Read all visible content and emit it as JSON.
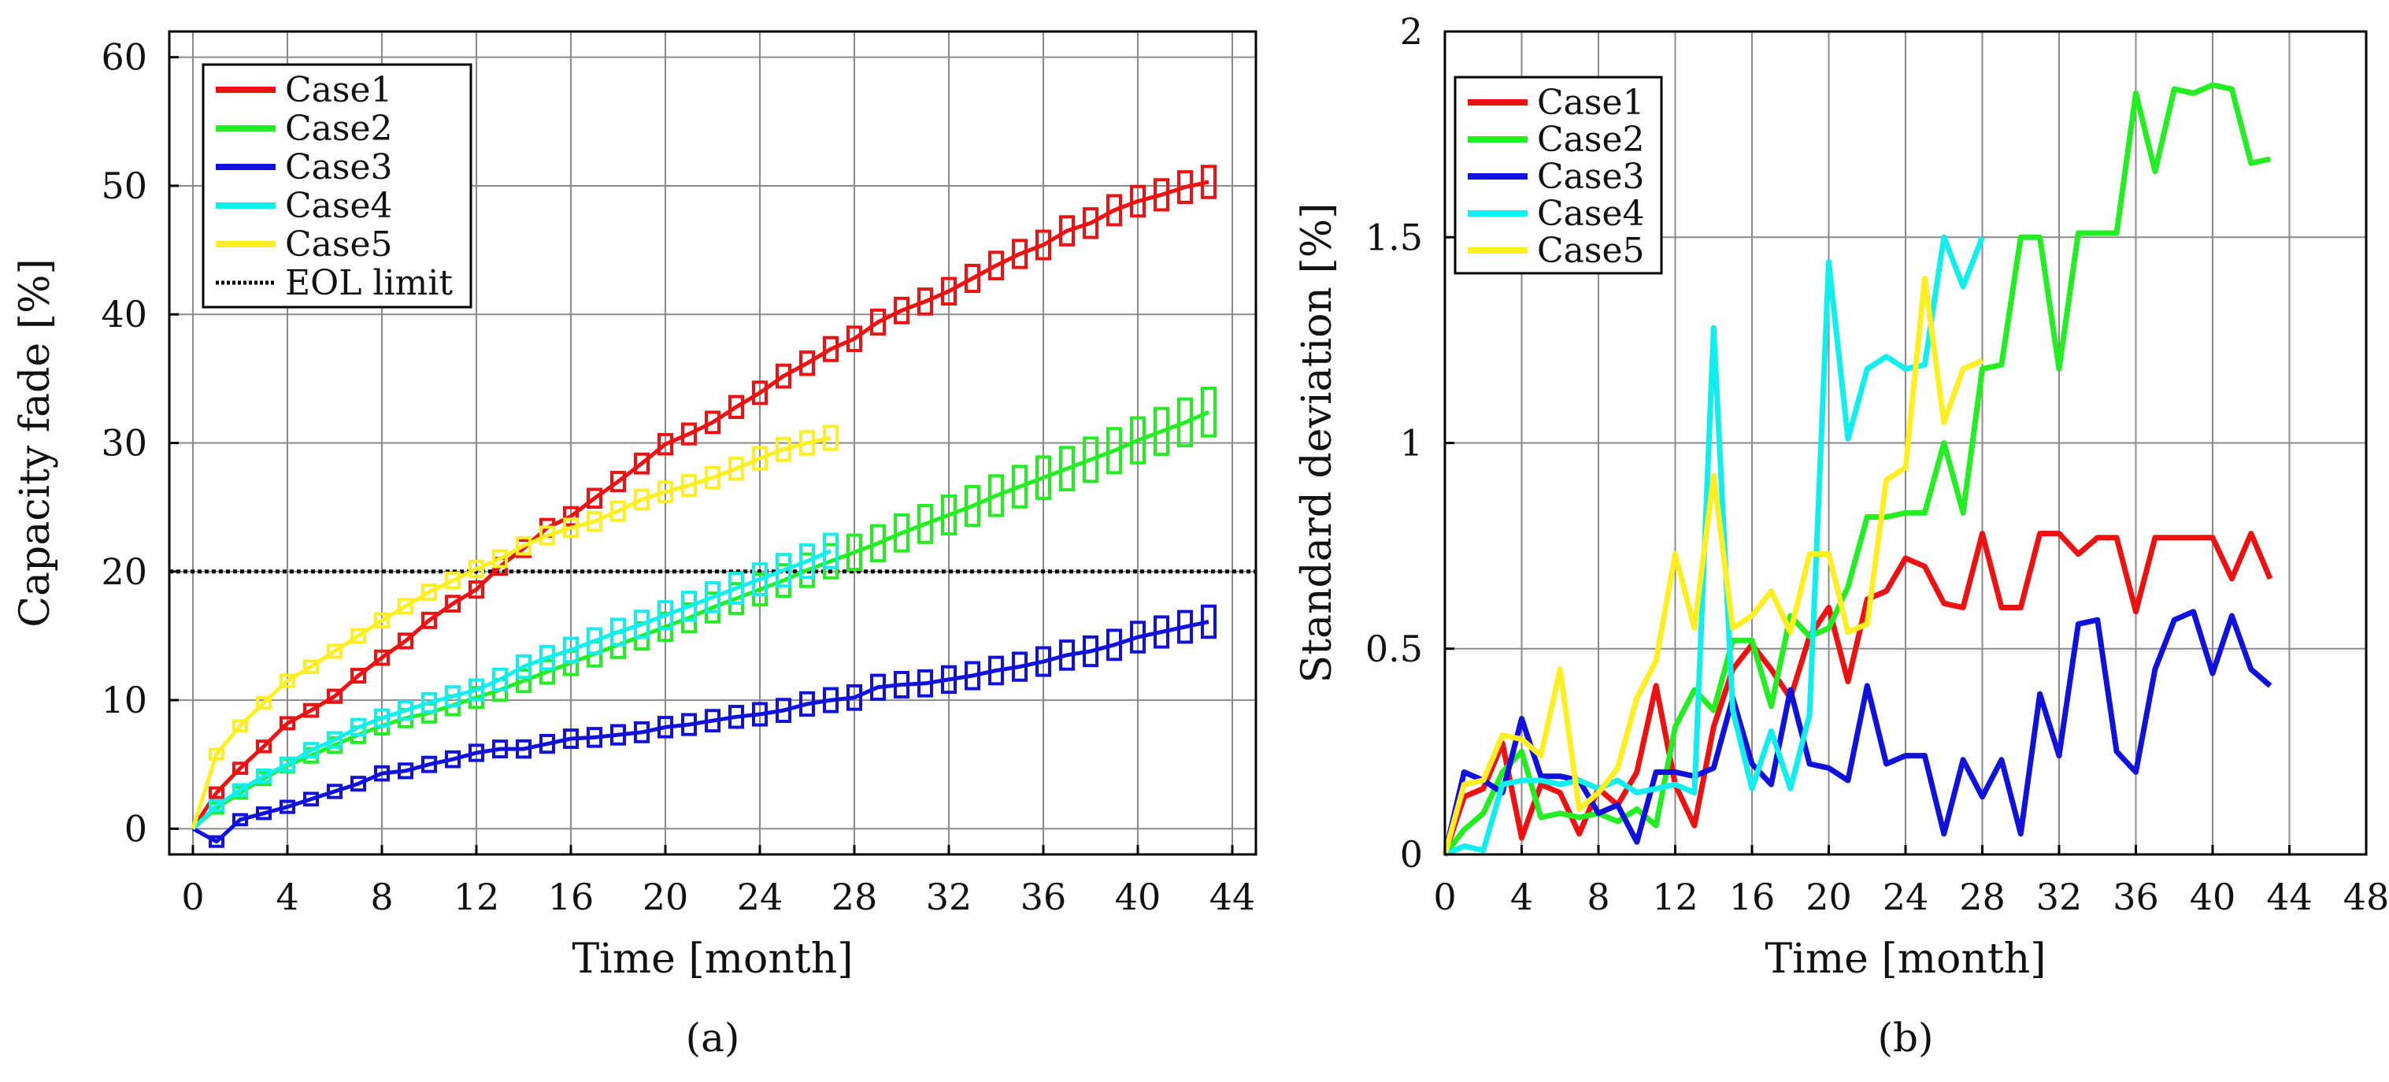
{
  "chart_data": [
    {
      "type": "line",
      "panel_label": "(a)",
      "xlabel": "Time [month]",
      "ylabel": "Capacity fade [%]",
      "xlim": [
        -1,
        45
      ],
      "ylim": [
        -2,
        62
      ],
      "xticks": [
        "0",
        "4",
        "8",
        "12",
        "16",
        "20",
        "24",
        "28",
        "32",
        "36",
        "40",
        "44"
      ],
      "yticks": [
        "0",
        "10",
        "20",
        "30",
        "40",
        "50",
        "60"
      ],
      "grid": true,
      "legend_position": "top-left",
      "reference_line": {
        "name": "EOL limit",
        "y": 20,
        "style": "dotted",
        "color": "#000000"
      },
      "series": [
        {
          "name": "Case1",
          "color": "#ee1111",
          "x": [
            0,
            1,
            2,
            3,
            4,
            5,
            6,
            7,
            8,
            9,
            10,
            11,
            12,
            13,
            14,
            15,
            16,
            17,
            18,
            19,
            20,
            21,
            22,
            23,
            24,
            25,
            26,
            27,
            28,
            29,
            30,
            31,
            32,
            33,
            34,
            35,
            36,
            37,
            38,
            39,
            40,
            41,
            42,
            43
          ],
          "y": [
            0,
            2.8,
            4.7,
            6.4,
            8.2,
            9.2,
            10.3,
            11.9,
            13.3,
            14.6,
            16.2,
            17.5,
            18.6,
            20.4,
            21.8,
            23.4,
            24.3,
            25.7,
            27.0,
            28.4,
            29.9,
            30.7,
            31.6,
            32.8,
            33.9,
            35.2,
            36.2,
            37.3,
            38.1,
            39.4,
            40.3,
            41.0,
            41.8,
            42.8,
            43.8,
            44.7,
            45.4,
            46.5,
            47.1,
            48.1,
            48.8,
            49.3,
            49.9,
            50.3
          ]
        },
        {
          "name": "Case2",
          "color": "#22ee22",
          "x": [
            0,
            1,
            2,
            3,
            4,
            5,
            6,
            7,
            8,
            9,
            10,
            11,
            12,
            13,
            14,
            15,
            16,
            17,
            18,
            19,
            20,
            21,
            22,
            23,
            24,
            25,
            26,
            27,
            28,
            29,
            30,
            31,
            32,
            33,
            34,
            35,
            36,
            37,
            38,
            39,
            40,
            41,
            42,
            43
          ],
          "y": [
            0,
            1.6,
            2.8,
            3.9,
            4.9,
            5.7,
            6.5,
            7.3,
            8.0,
            8.6,
            9.0,
            9.6,
            10.2,
            10.8,
            11.5,
            12.2,
            12.9,
            13.6,
            14.3,
            15.0,
            15.7,
            16.4,
            17.2,
            17.9,
            18.6,
            19.3,
            20.1,
            20.8,
            21.5,
            22.2,
            23.0,
            23.7,
            24.4,
            25.1,
            25.9,
            26.6,
            27.3,
            28.0,
            28.7,
            29.4,
            30.2,
            30.9,
            31.6,
            32.4
          ]
        },
        {
          "name": "Case3",
          "color": "#1111dd",
          "x": [
            0,
            1,
            2,
            3,
            4,
            5,
            6,
            7,
            8,
            9,
            10,
            11,
            12,
            13,
            14,
            15,
            16,
            17,
            18,
            19,
            20,
            21,
            22,
            23,
            24,
            25,
            26,
            27,
            28,
            29,
            30,
            31,
            32,
            33,
            34,
            35,
            36,
            37,
            38,
            39,
            40,
            41,
            42,
            43
          ],
          "y": [
            0,
            -1,
            0.7,
            1.2,
            1.7,
            2.3,
            2.9,
            3.5,
            4.3,
            4.5,
            5.0,
            5.4,
            5.9,
            6.2,
            6.2,
            6.6,
            7.0,
            7.1,
            7.3,
            7.5,
            7.9,
            8.1,
            8.4,
            8.7,
            8.9,
            9.2,
            9.7,
            10.0,
            10.2,
            11.0,
            11.2,
            11.3,
            11.6,
            11.9,
            12.3,
            12.6,
            13.0,
            13.5,
            13.8,
            14.3,
            14.9,
            15.3,
            15.7,
            16.1
          ]
        },
        {
          "name": "Case4",
          "color": "#11eeee",
          "x": [
            0,
            1,
            2,
            3,
            4,
            5,
            6,
            7,
            8,
            9,
            10,
            11,
            12,
            13,
            14,
            15,
            16,
            17,
            18,
            19,
            20,
            21,
            22,
            23,
            24,
            25,
            26,
            27
          ],
          "y": [
            0,
            1.8,
            3.0,
            4.1,
            5.0,
            6.1,
            6.9,
            7.9,
            8.6,
            9.2,
            9.8,
            10.3,
            10.8,
            11.6,
            12.6,
            13.3,
            13.9,
            14.6,
            15.3,
            15.9,
            16.6,
            17.3,
            18.0,
            18.7,
            19.4,
            20.1,
            20.8,
            21.6
          ]
        },
        {
          "name": "Case5",
          "color": "#ffee22",
          "x": [
            0,
            1,
            2,
            3,
            4,
            5,
            6,
            7,
            8,
            9,
            10,
            11,
            12,
            13,
            14,
            15,
            16,
            17,
            18,
            19,
            20,
            21,
            22,
            23,
            24,
            25,
            26,
            27
          ],
          "y": [
            0,
            5.8,
            8.0,
            9.8,
            11.5,
            12.6,
            13.8,
            15.0,
            16.2,
            17.3,
            18.4,
            19.3,
            20.2,
            21.0,
            22.0,
            22.8,
            23.4,
            23.9,
            24.7,
            25.6,
            26.2,
            26.7,
            27.3,
            28.0,
            28.8,
            29.5,
            30.0,
            30.4
          ]
        }
      ]
    },
    {
      "type": "line",
      "panel_label": "(b)",
      "xlabel": "Time [month]",
      "ylabel": "Standard deviation [%]",
      "xlim": [
        0,
        48
      ],
      "ylim": [
        0,
        2
      ],
      "xticks": [
        "0",
        "4",
        "8",
        "12",
        "16",
        "20",
        "24",
        "28",
        "32",
        "36",
        "40",
        "44",
        "48"
      ],
      "yticks": [
        "0",
        "0.5",
        "1",
        "1.5",
        "2"
      ],
      "grid": true,
      "legend_position": "top-left",
      "series": [
        {
          "name": "Case1",
          "color": "#ee1111",
          "x": [
            0,
            1,
            2,
            3,
            4,
            5,
            6,
            7,
            8,
            9,
            10,
            11,
            12,
            13,
            14,
            15,
            16,
            17,
            18,
            19,
            20,
            21,
            22,
            23,
            24,
            25,
            26,
            27,
            28,
            29,
            30,
            31,
            32,
            33,
            34,
            35,
            36,
            37,
            38,
            39,
            40,
            41,
            42,
            43
          ],
          "y": [
            0,
            0.14,
            0.16,
            0.27,
            0.04,
            0.17,
            0.15,
            0.05,
            0.16,
            0.12,
            0.2,
            0.41,
            0.17,
            0.07,
            0.31,
            0.45,
            0.51,
            0.45,
            0.38,
            0.53,
            0.6,
            0.42,
            0.62,
            0.64,
            0.72,
            0.7,
            0.61,
            0.6,
            0.78,
            0.6,
            0.6,
            0.78,
            0.78,
            0.73,
            0.77,
            0.77,
            0.59,
            0.77,
            0.77,
            0.77,
            0.77,
            0.67,
            0.78,
            0.67
          ]
        },
        {
          "name": "Case2",
          "color": "#22ee22",
          "x": [
            0,
            1,
            2,
            3,
            4,
            5,
            6,
            7,
            8,
            9,
            10,
            11,
            12,
            13,
            14,
            15,
            16,
            17,
            18,
            19,
            20,
            21,
            22,
            23,
            24,
            25,
            26,
            27,
            28,
            29,
            30,
            31,
            32,
            33,
            34,
            35,
            36,
            37,
            38,
            39,
            40,
            41,
            42,
            43
          ],
          "y": [
            0,
            0.06,
            0.1,
            0.2,
            0.25,
            0.09,
            0.1,
            0.09,
            0.1,
            0.08,
            0.11,
            0.07,
            0.31,
            0.4,
            0.35,
            0.52,
            0.52,
            0.36,
            0.58,
            0.53,
            0.55,
            0.65,
            0.82,
            0.82,
            0.83,
            0.83,
            1.0,
            0.83,
            1.18,
            1.19,
            1.5,
            1.5,
            1.18,
            1.51,
            1.51,
            1.51,
            1.85,
            1.66,
            1.86,
            1.85,
            1.87,
            1.86,
            1.68,
            1.69
          ]
        },
        {
          "name": "Case3",
          "color": "#1111dd",
          "x": [
            0,
            1,
            2,
            3,
            4,
            5,
            6,
            7,
            8,
            9,
            10,
            11,
            12,
            13,
            14,
            15,
            16,
            17,
            18,
            19,
            20,
            21,
            22,
            23,
            24,
            25,
            26,
            27,
            28,
            29,
            30,
            31,
            32,
            33,
            34,
            35,
            36,
            37,
            38,
            39,
            40,
            41,
            42,
            43
          ],
          "y": [
            0,
            0.2,
            0.18,
            0.15,
            0.33,
            0.19,
            0.19,
            0.18,
            0.1,
            0.12,
            0.03,
            0.2,
            0.2,
            0.19,
            0.21,
            0.38,
            0.22,
            0.17,
            0.4,
            0.22,
            0.21,
            0.18,
            0.41,
            0.22,
            0.24,
            0.24,
            0.05,
            0.23,
            0.14,
            0.23,
            0.05,
            0.39,
            0.24,
            0.56,
            0.57,
            0.25,
            0.2,
            0.45,
            0.57,
            0.59,
            0.44,
            0.58,
            0.45,
            0.41
          ]
        },
        {
          "name": "Case4",
          "color": "#11eeee",
          "x": [
            0,
            1,
            2,
            3,
            4,
            5,
            6,
            7,
            8,
            9,
            10,
            11,
            12,
            13,
            14,
            15,
            16,
            17,
            18,
            19,
            20,
            21,
            22,
            23,
            24,
            25,
            26,
            27,
            28
          ],
          "y": [
            0,
            0.02,
            0.01,
            0.17,
            0.18,
            0.18,
            0.17,
            0.18,
            0.16,
            0.18,
            0.15,
            0.16,
            0.17,
            0.15,
            1.28,
            0.35,
            0.16,
            0.3,
            0.16,
            0.34,
            1.44,
            1.01,
            1.18,
            1.21,
            1.18,
            1.19,
            1.5,
            1.38,
            1.5
          ]
        },
        {
          "name": "Case5",
          "color": "#ffee22",
          "x": [
            0,
            1,
            2,
            3,
            4,
            5,
            6,
            7,
            8,
            9,
            10,
            11,
            12,
            13,
            14,
            15,
            16,
            17,
            18,
            19,
            20,
            21,
            22,
            23,
            24,
            25,
            26,
            27,
            28
          ],
          "y": [
            0,
            0.17,
            0.18,
            0.29,
            0.28,
            0.24,
            0.45,
            0.11,
            0.15,
            0.21,
            0.38,
            0.47,
            0.73,
            0.55,
            0.92,
            0.55,
            0.58,
            0.64,
            0.54,
            0.73,
            0.73,
            0.54,
            0.56,
            0.91,
            0.94,
            1.4,
            1.05,
            1.18,
            1.2
          ]
        }
      ]
    }
  ]
}
